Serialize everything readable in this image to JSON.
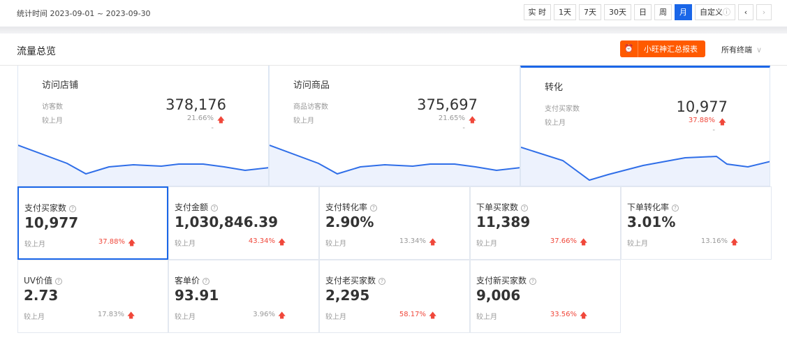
{
  "topbar": {
    "range": "统计时间 2023-09-01 ~ 2023-09-30",
    "buttons": [
      "实 时",
      "1天",
      "7天",
      "30天",
      "日",
      "周",
      "月",
      "自定义"
    ],
    "active": "月",
    "prev": "‹",
    "next": "›"
  },
  "header": {
    "title": "流量总览",
    "report_button": "小旺神汇总报表",
    "terminal": "所有终端",
    "terminal_chevron": "∨"
  },
  "colors": {
    "accent": "#1a66e8",
    "up": "#f0473a",
    "report": "#ff5a00"
  },
  "cards": [
    {
      "title": "访问店铺",
      "label": "访客数",
      "value": "378,176",
      "compare_label": "较上月",
      "change": "21.66%",
      "trend": "up",
      "extra": "-"
    },
    {
      "title": "访问商品",
      "label": "商品访客数",
      "value": "375,697",
      "compare_label": "较上月",
      "change": "21.65%",
      "trend": "up",
      "extra": "-"
    },
    {
      "title": "转化",
      "label": "支付买家数",
      "value": "10,977",
      "compare_label": "较上月",
      "change": "37.88%",
      "trend": "up",
      "extra": "-"
    }
  ],
  "metrics": [
    {
      "name": "支付买家数",
      "value": "10,977",
      "compare_label": "较上月",
      "change": "37.88%",
      "red": true
    },
    {
      "name": "支付金额",
      "value": "1,030,846.39",
      "compare_label": "较上月",
      "change": "43.34%",
      "red": true
    },
    {
      "name": "支付转化率",
      "value": "2.90%",
      "compare_label": "较上月",
      "change": "13.34%",
      "red": false
    },
    {
      "name": "下单买家数",
      "value": "11,389",
      "compare_label": "较上月",
      "change": "37.66%",
      "red": true
    },
    {
      "name": "下单转化率",
      "value": "3.01%",
      "compare_label": "较上月",
      "change": "13.16%",
      "red": false
    },
    {
      "name": "UV价值",
      "value": "2.73",
      "compare_label": "较上月",
      "change": "17.83%",
      "red": false
    },
    {
      "name": "客单价",
      "value": "93.91",
      "compare_label": "较上月",
      "change": "3.96%",
      "red": false
    },
    {
      "name": "支付老买家数",
      "value": "2,295",
      "compare_label": "较上月",
      "change": "58.17%",
      "red": true
    },
    {
      "name": "支付新买家数",
      "value": "9,006",
      "compare_label": "较上月",
      "change": "33.56%",
      "red": true
    }
  ]
}
